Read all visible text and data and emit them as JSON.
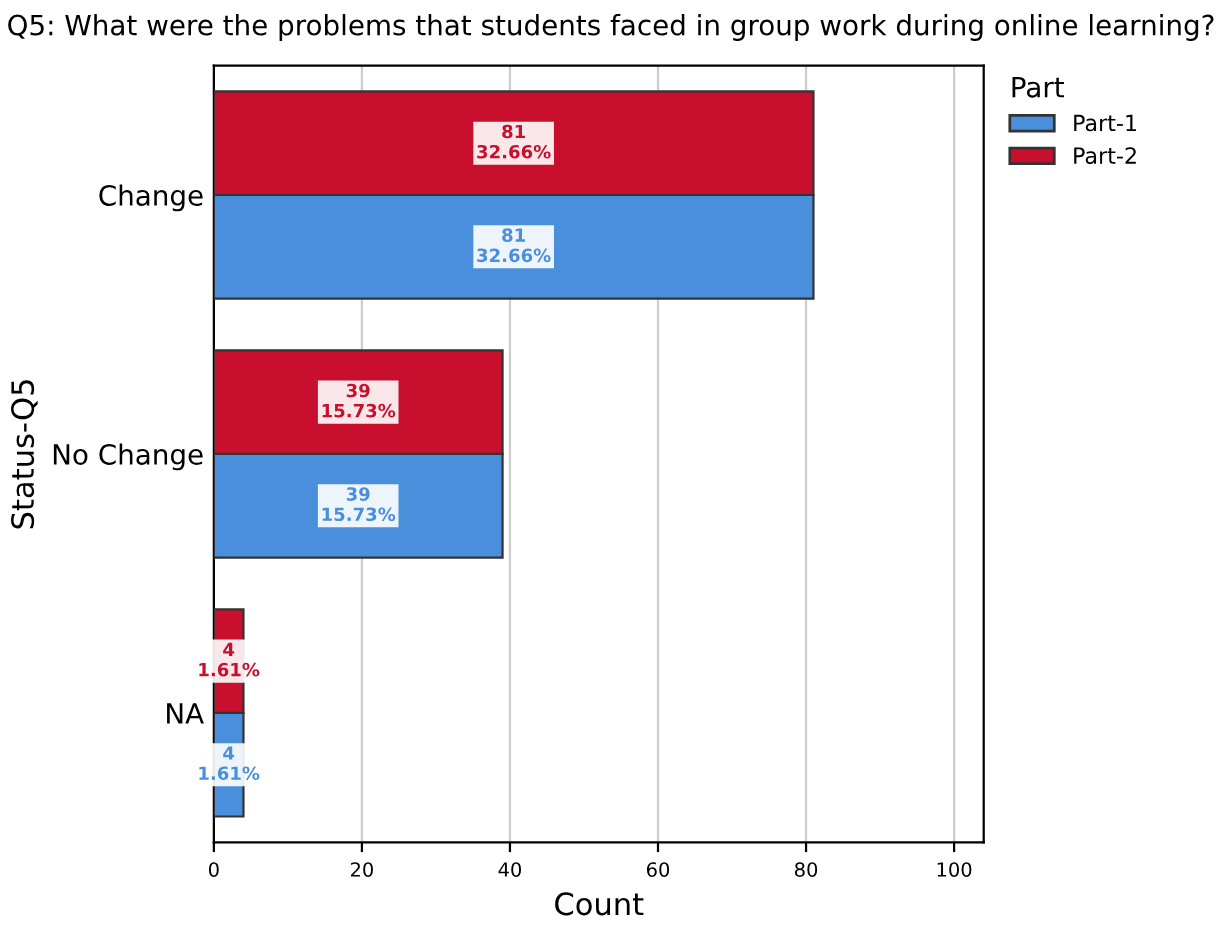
{
  "chart_data": {
    "type": "bar",
    "orientation": "horizontal",
    "title": "Q5: What were the problems that students faced in group work during online learning?",
    "xlabel": "Count",
    "ylabel": "Status-Q5",
    "legend_title": "Part",
    "categories": [
      "Change",
      "No Change",
      "NA"
    ],
    "series": [
      {
        "name": "Part-1",
        "color": "#4a8fdc",
        "values": [
          81,
          39,
          4
        ],
        "value_labels": [
          "81\n32.66%",
          "39\n15.73%",
          "4\n1.61%"
        ]
      },
      {
        "name": "Part-2",
        "color": "#c8102e",
        "values": [
          81,
          39,
          4
        ],
        "value_labels": [
          "81\n32.66%",
          "39\n15.73%",
          "4\n1.61%"
        ]
      }
    ],
    "xlim": [
      0,
      104
    ],
    "xticks": [
      0,
      20,
      40,
      60,
      80,
      100
    ],
    "grid": "x",
    "legend": "top right"
  }
}
